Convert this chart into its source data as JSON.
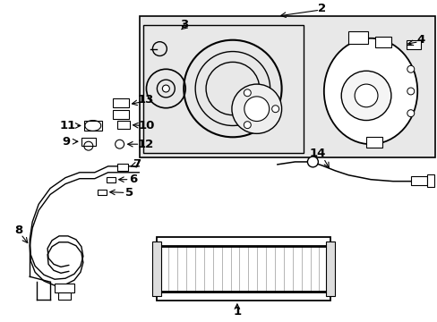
{
  "bg_color": "#ffffff",
  "line_color": "#000000",
  "box_fill": "#e8e8e8",
  "inner_box_fill": "#e8e8e8",
  "fig_w": 4.89,
  "fig_h": 3.6,
  "dpi": 100
}
